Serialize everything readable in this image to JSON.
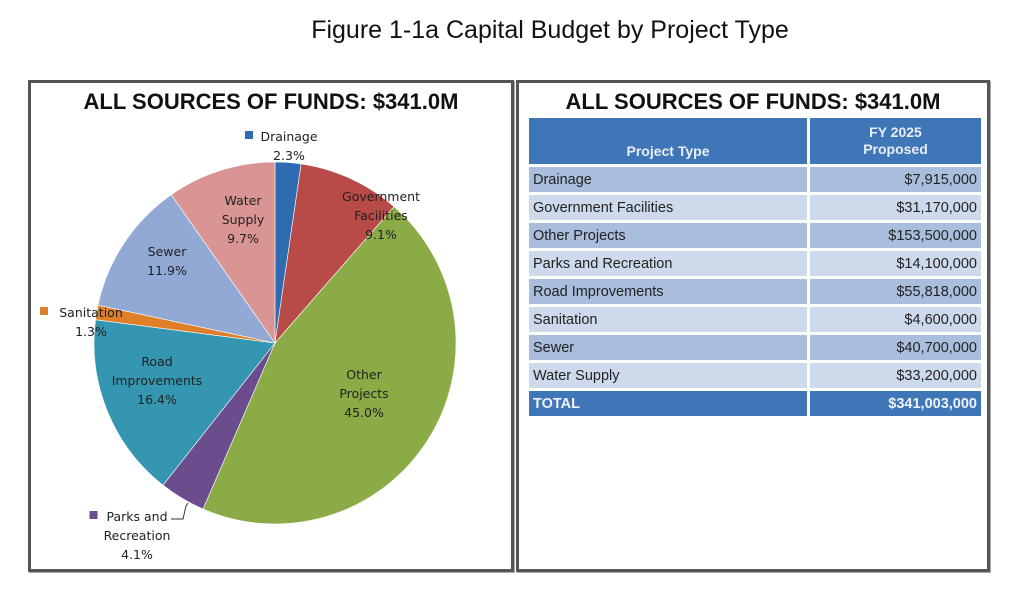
{
  "figure_title": "Figure 1-1a Capital Budget by Project Type",
  "chart_data": {
    "type": "pie",
    "title": "ALL SOURCES OF FUNDS: $341.0M",
    "start": "top, clockwise",
    "slices": [
      {
        "label": "Drainage",
        "pct_label": "2.3%",
        "value": 2.3,
        "color": "#2e6bb0"
      },
      {
        "label": "Government Facilities",
        "pct_label": "9.1%",
        "value": 9.1,
        "color": "#b84a48"
      },
      {
        "label": "Other Projects",
        "pct_label": "45.0%",
        "value": 45.0,
        "color": "#8aab45"
      },
      {
        "label": "Parks and Recreation",
        "pct_label": "4.1%",
        "value": 4.1,
        "color": "#6b4d8e"
      },
      {
        "label": "Road Improvements",
        "pct_label": "16.4%",
        "value": 16.4,
        "color": "#3496b0"
      },
      {
        "label": "Sanitation",
        "pct_label": "1.3%",
        "value": 1.3,
        "color": "#e07f2a"
      },
      {
        "label": "Sewer",
        "pct_label": "11.9%",
        "value": 11.9,
        "color": "#92a9d6"
      },
      {
        "label": "Water Supply",
        "pct_label": "9.7%",
        "value": 9.7,
        "color": "#d99594"
      }
    ]
  },
  "table": {
    "title": "ALL SOURCES OF FUNDS: $341.0M",
    "headers": [
      "Project Type",
      "FY 2025",
      "Proposed"
    ],
    "rows": [
      [
        "Drainage",
        "$7,915,000"
      ],
      [
        "Government Facilities",
        "$31,170,000"
      ],
      [
        "Other Projects",
        "$153,500,000"
      ],
      [
        "Parks and Recreation",
        "$14,100,000"
      ],
      [
        "Road Improvements",
        "$55,818,000"
      ],
      [
        "Sanitation",
        "$4,600,000"
      ],
      [
        "Sewer",
        "$40,700,000"
      ],
      [
        "Water Supply",
        "$33,200,000"
      ]
    ],
    "total": [
      "TOTAL",
      "$341,003,000"
    ]
  }
}
